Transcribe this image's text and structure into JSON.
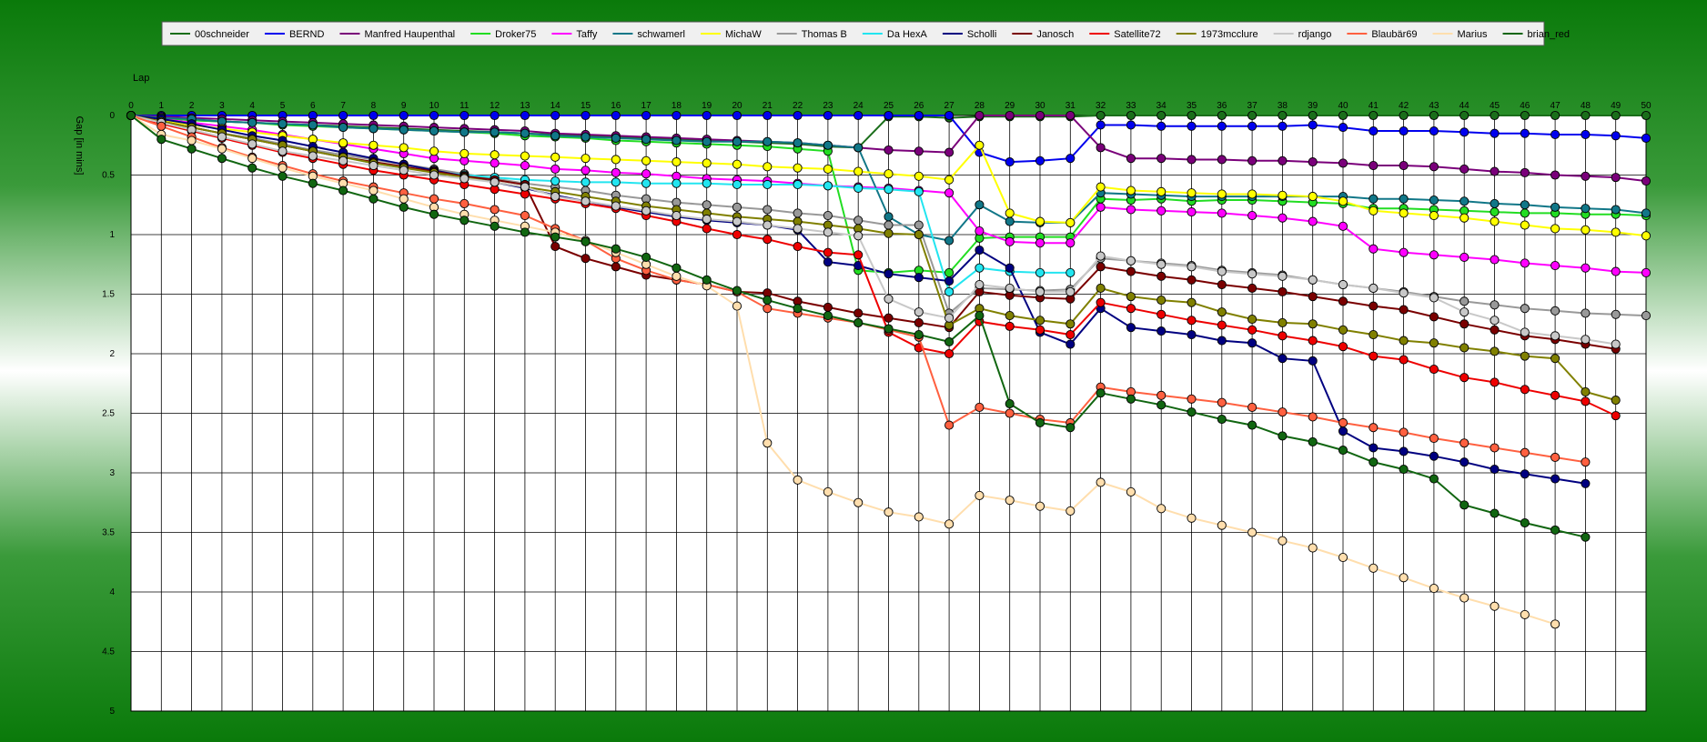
{
  "chart_data": {
    "type": "line",
    "xlabel": "Lap",
    "ylabel": "Gap [in mins]",
    "xlim": [
      0,
      50
    ],
    "ylim": [
      0,
      5
    ],
    "y_inverted": true,
    "grid": true,
    "legend_position": "top",
    "x_ticks": [
      0,
      1,
      2,
      3,
      4,
      5,
      6,
      7,
      8,
      9,
      10,
      11,
      12,
      13,
      14,
      15,
      16,
      17,
      18,
      19,
      20,
      21,
      22,
      23,
      24,
      25,
      26,
      27,
      28,
      29,
      30,
      31,
      32,
      33,
      34,
      35,
      36,
      37,
      38,
      39,
      40,
      41,
      42,
      43,
      44,
      45,
      46,
      47,
      48,
      49,
      50
    ],
    "y_ticks": [
      0,
      0.5,
      1,
      1.5,
      2,
      2.5,
      3,
      3.5,
      4,
      4.5,
      5
    ],
    "series": [
      {
        "name": "00schneider",
        "color": "#1a6e1a",
        "values": [
          0,
          0.02,
          0.04,
          0.05,
          0.06,
          0.07,
          0.08,
          0.09,
          0.1,
          0.11,
          0.12,
          0.13,
          0.14,
          0.15,
          0.16,
          0.17,
          0.18,
          0.19,
          0.2,
          0.21,
          0.22,
          0.23,
          0.24,
          0.26,
          0.27,
          0.01,
          0.01,
          0.02,
          0.01,
          0.01,
          0.01,
          0.01,
          0,
          0,
          0,
          0,
          0,
          0,
          0,
          0,
          0,
          0,
          0,
          0,
          0,
          0,
          0,
          0,
          0,
          0,
          0
        ]
      },
      {
        "name": "BERND",
        "color": "#0000ee",
        "values": [
          0,
          0,
          0,
          0,
          0,
          0,
          0,
          0,
          0,
          0,
          0,
          0,
          0,
          0,
          0,
          0,
          0,
          0,
          0,
          0,
          0,
          0,
          0,
          0,
          0,
          0,
          0,
          0,
          0.31,
          0.39,
          0.38,
          0.36,
          0.08,
          0.08,
          0.09,
          0.09,
          0.09,
          0.09,
          0.09,
          0.08,
          0.1,
          0.13,
          0.13,
          0.13,
          0.14,
          0.15,
          0.15,
          0.16,
          0.16,
          0.17,
          0.19
        ]
      },
      {
        "name": "Manfred Haupenthal",
        "color": "#7a007a",
        "values": [
          0,
          0.01,
          0.02,
          0.03,
          0.04,
          0.05,
          0.06,
          0.07,
          0.08,
          0.09,
          0.1,
          0.11,
          0.12,
          0.13,
          0.15,
          0.16,
          0.17,
          0.18,
          0.19,
          0.2,
          0.21,
          0.22,
          0.23,
          0.25,
          0.27,
          0.29,
          0.3,
          0.31,
          0,
          0,
          0,
          0,
          0.27,
          0.36,
          0.36,
          0.37,
          0.37,
          0.38,
          0.38,
          0.39,
          0.4,
          0.42,
          0.42,
          0.43,
          0.45,
          0.47,
          0.48,
          0.5,
          0.51,
          0.52,
          0.55
        ]
      },
      {
        "name": "Droker75",
        "color": "#22dd22",
        "values": [
          0,
          0.02,
          0.04,
          0.05,
          0.06,
          0.08,
          0.09,
          0.1,
          0.11,
          0.12,
          0.13,
          0.14,
          0.15,
          0.17,
          0.18,
          0.19,
          0.21,
          0.22,
          0.23,
          0.24,
          0.25,
          0.26,
          0.28,
          0.3,
          1.3,
          1.32,
          1.3,
          1.32,
          1.03,
          1.02,
          1.02,
          1.02,
          0.7,
          0.71,
          0.7,
          0.72,
          0.71,
          0.71,
          0.72,
          0.73,
          0.74,
          0.78,
          0.78,
          0.79,
          0.8,
          0.81,
          0.82,
          0.82,
          0.83,
          0.83,
          0.84
        ]
      },
      {
        "name": "Taffy",
        "color": "#ff00ff",
        "values": [
          0,
          0.03,
          0.06,
          0.09,
          0.12,
          0.16,
          0.2,
          0.24,
          0.28,
          0.32,
          0.36,
          0.38,
          0.4,
          0.42,
          0.45,
          0.46,
          0.48,
          0.49,
          0.51,
          0.53,
          0.54,
          0.55,
          0.57,
          0.59,
          0.6,
          0.61,
          0.63,
          0.65,
          0.97,
          1.06,
          1.07,
          1.07,
          0.77,
          0.79,
          0.8,
          0.81,
          0.82,
          0.84,
          0.86,
          0.89,
          0.93,
          1.12,
          1.15,
          1.17,
          1.19,
          1.21,
          1.24,
          1.26,
          1.28,
          1.31,
          1.32
        ]
      },
      {
        "name": "schwamerl",
        "color": "#117788",
        "values": [
          0,
          0.02,
          0.03,
          0.05,
          0.06,
          0.07,
          0.08,
          0.1,
          0.11,
          0.12,
          0.13,
          0.14,
          0.14,
          0.15,
          0.17,
          0.18,
          0.19,
          0.2,
          0.21,
          0.22,
          0.22,
          0.22,
          0.23,
          0.25,
          0.27,
          0.85,
          1.0,
          1.05,
          0.75,
          0.89,
          0.9,
          0.9,
          0.65,
          0.66,
          0.67,
          0.68,
          0.68,
          0.68,
          0.68,
          0.68,
          0.68,
          0.7,
          0.7,
          0.71,
          0.72,
          0.74,
          0.75,
          0.77,
          0.78,
          0.79,
          0.82
        ]
      },
      {
        "name": "MichaW",
        "color": "#ffff00",
        "values": [
          0,
          0.04,
          0.08,
          0.11,
          0.14,
          0.17,
          0.2,
          0.23,
          0.25,
          0.27,
          0.3,
          0.32,
          0.33,
          0.34,
          0.35,
          0.36,
          0.37,
          0.38,
          0.39,
          0.4,
          0.41,
          0.43,
          0.44,
          0.45,
          0.47,
          0.49,
          0.51,
          0.54,
          0.25,
          0.82,
          0.89,
          0.9,
          0.6,
          0.63,
          0.64,
          0.65,
          0.66,
          0.66,
          0.67,
          0.68,
          0.72,
          0.8,
          0.82,
          0.84,
          0.86,
          0.89,
          0.92,
          0.95,
          0.96,
          0.98,
          1.01
        ]
      },
      {
        "name": "Thomas B",
        "color": "#999999",
        "values": [
          0,
          0.05,
          0.1,
          0.15,
          0.19,
          0.24,
          0.29,
          0.33,
          0.37,
          0.41,
          0.45,
          0.49,
          0.53,
          0.57,
          0.6,
          0.63,
          0.67,
          0.7,
          0.73,
          0.75,
          0.77,
          0.79,
          0.82,
          0.84,
          0.88,
          0.92,
          0.92,
          1.66,
          1.45,
          1.46,
          1.47,
          1.46,
          1.2,
          1.22,
          1.24,
          1.26,
          1.3,
          1.32,
          1.34,
          1.38,
          1.42,
          1.45,
          1.48,
          1.52,
          1.56,
          1.59,
          1.62,
          1.64,
          1.66,
          1.67,
          1.68
        ]
      },
      {
        "name": "Da HexA",
        "color": "#22e5f0",
        "values": [
          0,
          0.05,
          0.1,
          0.15,
          0.2,
          0.25,
          0.3,
          0.35,
          0.4,
          0.44,
          0.47,
          0.5,
          0.52,
          0.54,
          0.55,
          0.56,
          0.56,
          0.57,
          0.57,
          0.57,
          0.58,
          0.58,
          0.58,
          0.59,
          0.61,
          0.62,
          0.64,
          1.48,
          1.28,
          1.31,
          1.32,
          1.32,
          null,
          null,
          null,
          null,
          null,
          null,
          null,
          null,
          null,
          null,
          null,
          null,
          null,
          null,
          null,
          null,
          null,
          null,
          null
        ]
      },
      {
        "name": "Scholli",
        "color": "#000080",
        "values": [
          0,
          0.03,
          0.07,
          0.12,
          0.17,
          0.21,
          0.26,
          0.31,
          0.36,
          0.41,
          0.46,
          0.51,
          0.56,
          0.61,
          0.67,
          0.72,
          0.77,
          0.81,
          0.85,
          0.88,
          0.9,
          0.92,
          0.96,
          1.23,
          1.26,
          1.33,
          1.36,
          1.39,
          1.13,
          1.28,
          1.82,
          1.92,
          1.62,
          1.78,
          1.81,
          1.84,
          1.89,
          1.91,
          2.04,
          2.06,
          2.65,
          2.79,
          2.82,
          2.86,
          2.91,
          2.97,
          3.01,
          3.05,
          3.09,
          null,
          null
        ]
      },
      {
        "name": "Janosch",
        "color": "#7a0000",
        "values": [
          0,
          0.05,
          0.1,
          0.15,
          0.2,
          0.25,
          0.3,
          0.35,
          0.39,
          0.43,
          0.47,
          0.51,
          0.54,
          0.58,
          1.1,
          1.2,
          1.27,
          1.34,
          1.38,
          1.42,
          1.48,
          1.49,
          1.56,
          1.61,
          1.66,
          1.7,
          1.74,
          1.78,
          1.48,
          1.51,
          1.53,
          1.54,
          1.27,
          1.31,
          1.35,
          1.38,
          1.42,
          1.45,
          1.48,
          1.52,
          1.56,
          1.6,
          1.63,
          1.69,
          1.75,
          1.8,
          1.85,
          1.88,
          1.92,
          1.96,
          null
        ]
      },
      {
        "name": "Satellite72",
        "color": "#ee0000",
        "values": [
          0,
          0.07,
          0.13,
          0.19,
          0.25,
          0.31,
          0.36,
          0.41,
          0.46,
          0.5,
          0.54,
          0.58,
          0.62,
          0.66,
          0.7,
          0.74,
          0.78,
          0.84,
          0.89,
          0.95,
          1.0,
          1.04,
          1.1,
          1.15,
          1.17,
          1.82,
          1.95,
          2.0,
          1.73,
          1.77,
          1.8,
          1.84,
          1.57,
          1.62,
          1.67,
          1.72,
          1.76,
          1.8,
          1.85,
          1.89,
          1.94,
          2.02,
          2.05,
          2.13,
          2.2,
          2.24,
          2.3,
          2.35,
          2.4,
          2.52,
          null
        ]
      },
      {
        "name": "1973mcclure",
        "color": "#808000",
        "values": [
          0,
          0.05,
          0.1,
          0.15,
          0.2,
          0.25,
          0.3,
          0.35,
          0.4,
          0.44,
          0.48,
          0.52,
          0.56,
          0.6,
          0.64,
          0.68,
          0.72,
          0.76,
          0.79,
          0.82,
          0.85,
          0.87,
          0.89,
          0.92,
          0.95,
          0.99,
          1.0,
          1.76,
          1.62,
          1.68,
          1.72,
          1.75,
          1.45,
          1.52,
          1.55,
          1.57,
          1.65,
          1.71,
          1.74,
          1.75,
          1.8,
          1.84,
          1.89,
          1.91,
          1.95,
          1.98,
          2.02,
          2.04,
          2.32,
          2.39,
          null
        ]
      },
      {
        "name": "rdjango",
        "color": "#c8c8c8",
        "values": [
          0,
          0.06,
          0.12,
          0.18,
          0.24,
          0.3,
          0.34,
          0.38,
          0.42,
          0.46,
          0.5,
          0.53,
          0.56,
          0.6,
          0.68,
          0.72,
          0.76,
          0.8,
          0.84,
          0.87,
          0.89,
          0.92,
          0.95,
          0.98,
          1.01,
          1.54,
          1.65,
          1.7,
          1.42,
          1.45,
          1.48,
          1.48,
          1.18,
          1.22,
          1.25,
          1.27,
          1.31,
          1.33,
          1.35,
          1.38,
          1.42,
          1.45,
          1.49,
          1.53,
          1.65,
          1.72,
          1.82,
          1.85,
          1.88,
          1.92,
          null
        ]
      },
      {
        "name": "Blaubär69",
        "color": "#ff6040",
        "values": [
          0,
          0.09,
          0.18,
          0.27,
          0.35,
          0.42,
          0.49,
          0.55,
          0.6,
          0.65,
          0.7,
          0.74,
          0.79,
          0.84,
          0.95,
          1.05,
          1.2,
          1.3,
          1.38,
          1.42,
          1.48,
          1.62,
          1.66,
          1.7,
          1.74,
          1.8,
          1.86,
          2.6,
          2.45,
          2.5,
          2.55,
          2.58,
          2.28,
          2.32,
          2.35,
          2.38,
          2.41,
          2.45,
          2.49,
          2.53,
          2.58,
          2.62,
          2.66,
          2.71,
          2.75,
          2.79,
          2.83,
          2.87,
          2.91,
          null,
          null
        ]
      },
      {
        "name": "Marius",
        "color": "#ffdead",
        "values": [
          0,
          0.16,
          0.21,
          0.28,
          0.36,
          0.44,
          0.51,
          0.57,
          0.63,
          0.7,
          0.77,
          0.83,
          0.88,
          0.93,
          0.98,
          1.05,
          1.15,
          1.25,
          1.35,
          1.43,
          1.6,
          2.75,
          3.06,
          3.16,
          3.25,
          3.33,
          3.37,
          3.43,
          3.19,
          3.23,
          3.28,
          3.32,
          3.08,
          3.16,
          3.3,
          3.38,
          3.44,
          3.5,
          3.57,
          3.63,
          3.71,
          3.8,
          3.88,
          3.97,
          4.05,
          4.12,
          4.19,
          4.27,
          null,
          null,
          null
        ]
      },
      {
        "name": "brian_red",
        "color": "#116611",
        "values": [
          0,
          0.2,
          0.28,
          0.36,
          0.44,
          0.51,
          0.57,
          0.63,
          0.7,
          0.77,
          0.83,
          0.88,
          0.93,
          0.98,
          1.02,
          1.06,
          1.12,
          1.19,
          1.28,
          1.38,
          1.47,
          1.55,
          1.62,
          1.68,
          1.74,
          1.79,
          1.84,
          1.9,
          1.68,
          2.42,
          2.58,
          2.62,
          2.33,
          2.38,
          2.43,
          2.49,
          2.55,
          2.6,
          2.69,
          2.74,
          2.81,
          2.91,
          2.97,
          3.05,
          3.27,
          3.34,
          3.42,
          3.48,
          3.54,
          null,
          null
        ]
      }
    ]
  }
}
